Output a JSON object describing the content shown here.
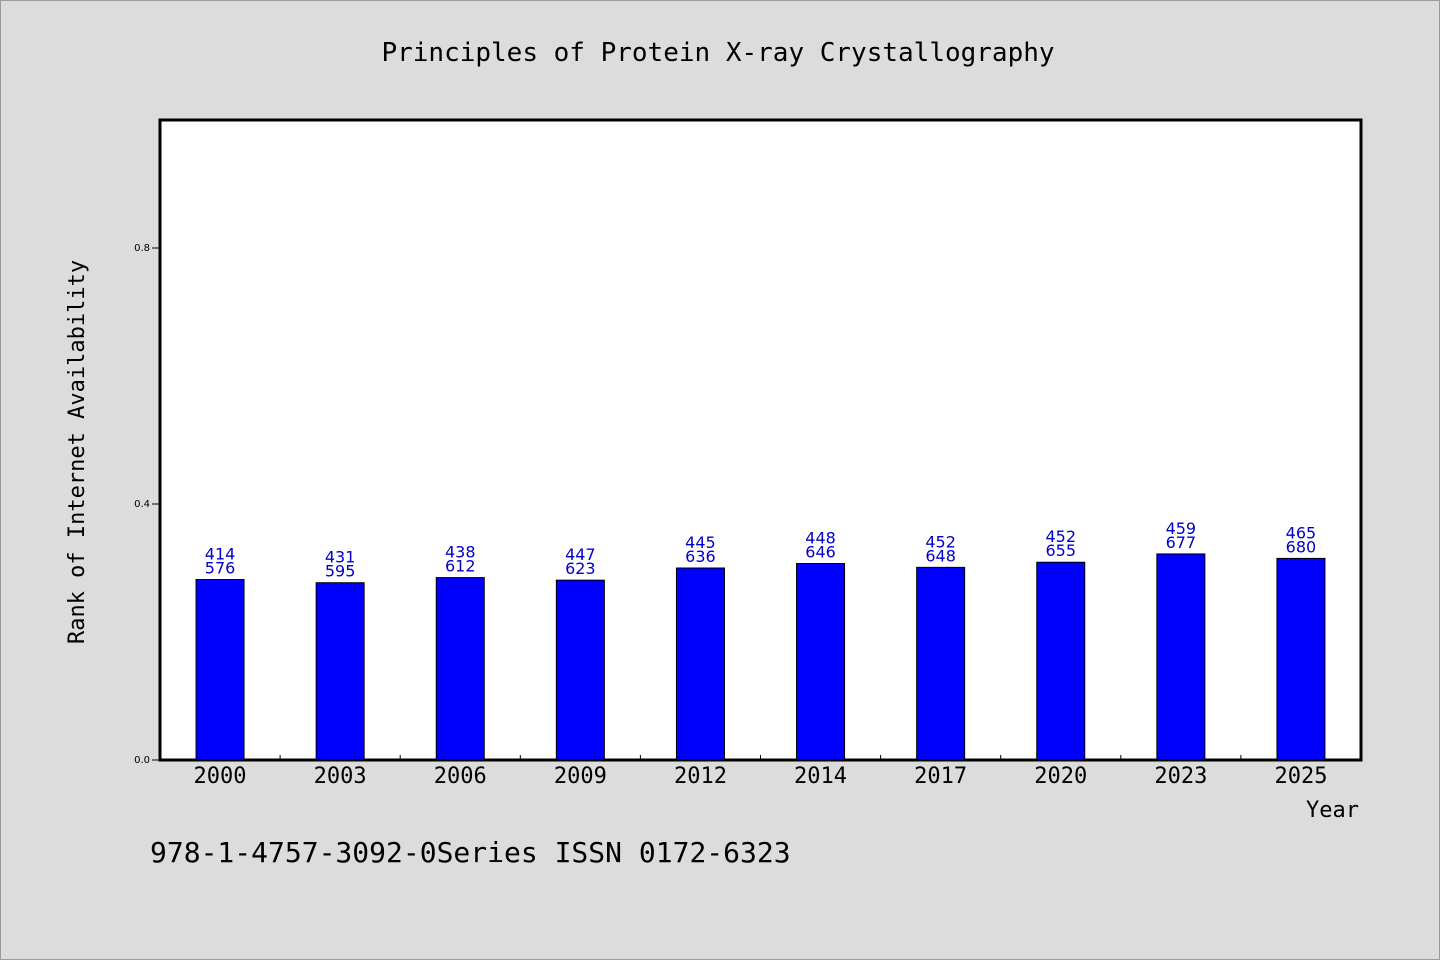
{
  "chart_data": {
    "type": "bar",
    "title": "Principles of Protein X-ray Crystallography",
    "xlabel": "Year",
    "ylabel": "Rank of Internet Availability",
    "categories": [
      "2000",
      "2003",
      "2006",
      "2009",
      "2012",
      "2014",
      "2017",
      "2020",
      "2023",
      "2025"
    ],
    "values": [
      0.282,
      0.277,
      0.285,
      0.281,
      0.3,
      0.307,
      0.301,
      0.309,
      0.322,
      0.315
    ],
    "labels_top": [
      "414",
      "431",
      "438",
      "447",
      "445",
      "448",
      "452",
      "452",
      "459",
      "465"
    ],
    "labels_bottom": [
      "576",
      "595",
      "612",
      "623",
      "636",
      "646",
      "648",
      "655",
      "677",
      "680"
    ],
    "ylim": [
      0,
      1.0
    ],
    "yticks": [
      "0.0",
      "0.4",
      "0.8"
    ],
    "grid": false,
    "bar_color": "#0000ff",
    "label_color": "#0000cc"
  },
  "footer": "978-1-4757-3092-0Series ISSN 0172-6323"
}
